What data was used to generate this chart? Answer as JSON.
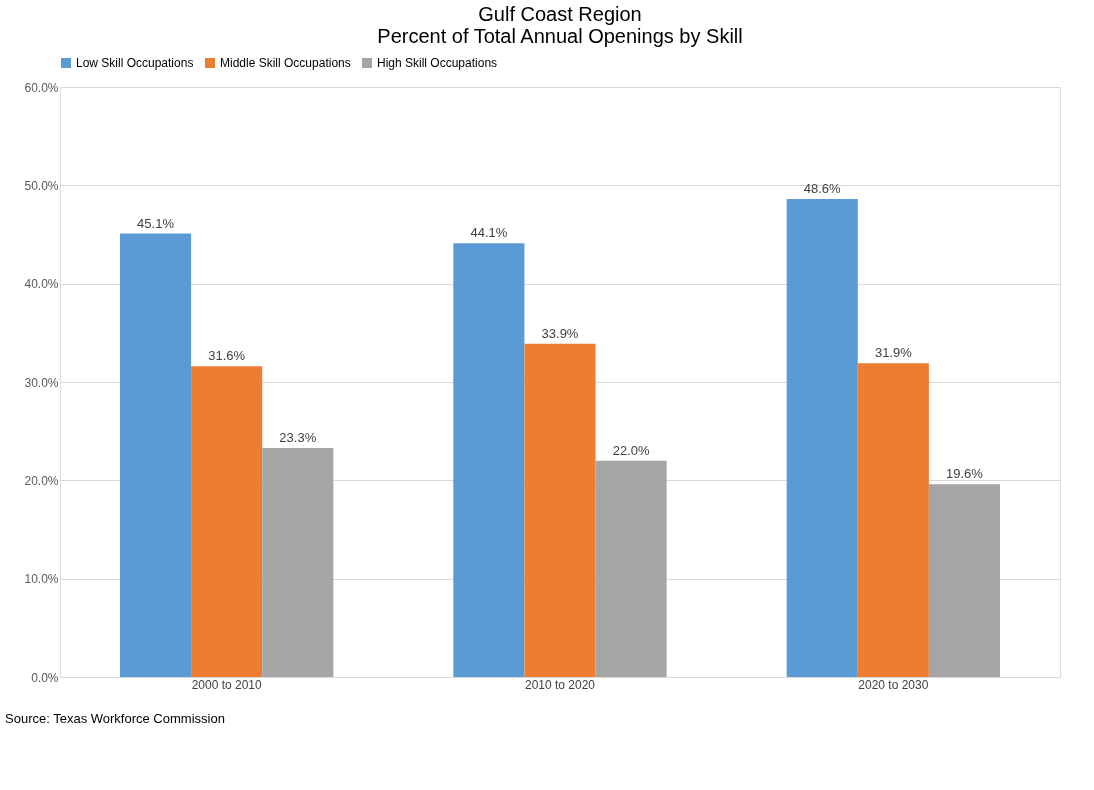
{
  "chart_data": {
    "type": "bar",
    "title": "Gulf Coast Region\nPercent of Total Annual Openings by Skill",
    "categories": [
      "2000 to 2010",
      "2010 to 2020",
      "2020 to 2030"
    ],
    "series": [
      {
        "name": "Low Skill Occupations",
        "color": "#5b9bd5",
        "values": [
          45.1,
          44.1,
          48.6
        ],
        "value_labels": [
          "45.1%",
          "44.1%",
          "48.6%"
        ]
      },
      {
        "name": "Middle Skill Occupations",
        "color": "#ed7d31",
        "values": [
          31.6,
          33.9,
          31.9
        ],
        "value_labels": [
          "31.6%",
          "33.9%",
          "31.9%"
        ]
      },
      {
        "name": "High Skill Occupations",
        "color": "#a5a5a5",
        "values": [
          23.3,
          22.0,
          19.6
        ],
        "value_labels": [
          "23.3%",
          "22.0%",
          "19.6%"
        ]
      }
    ],
    "ylim": [
      0,
      60
    ],
    "yticks": [
      {
        "value": 0,
        "label": "0.0%"
      },
      {
        "value": 10,
        "label": "10.0%"
      },
      {
        "value": 20,
        "label": "20.0%"
      },
      {
        "value": 30,
        "label": "30.0%"
      },
      {
        "value": 40,
        "label": "40.0%"
      },
      {
        "value": 50,
        "label": "50.0%"
      },
      {
        "value": 60,
        "label": "60.0%"
      }
    ],
    "grid": "y",
    "legend": "top",
    "annotations": [
      "Source: Texas Workforce Commission"
    ]
  }
}
